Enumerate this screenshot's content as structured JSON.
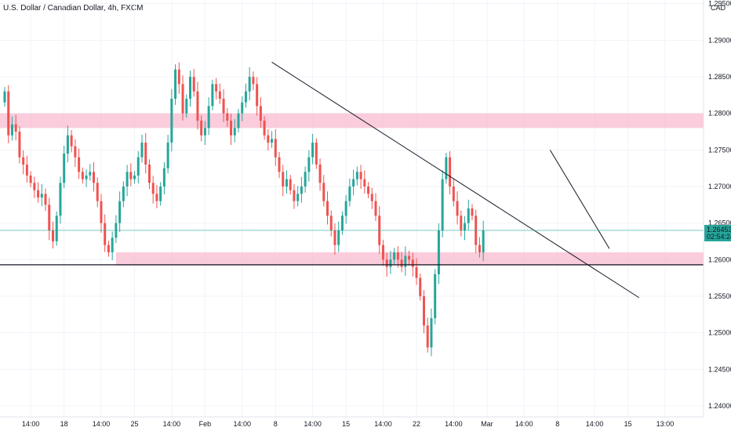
{
  "chart_data": {
    "type": "candlestick",
    "title": "U.S. Dollar / Canadian Dollar, 4h, FXCM",
    "currency": "CAD",
    "price_label": "1.26453",
    "countdown": "02:54:24",
    "ylim": [
      1.2385,
      1.2955
    ],
    "y_ticks": [
      "1.29500",
      "1.29000",
      "1.28500",
      "1.28000",
      "1.27500",
      "1.27000",
      "1.26500",
      "1.26000",
      "1.25500",
      "1.25000",
      "1.24500",
      "1.24000"
    ],
    "x_ticks": [
      {
        "label": "14:00",
        "bar": 7
      },
      {
        "label": "18",
        "bar": 16
      },
      {
        "label": "14:00",
        "bar": 26
      },
      {
        "label": "25",
        "bar": 35
      },
      {
        "label": "14:00",
        "bar": 45
      },
      {
        "label": "Feb",
        "bar": 54
      },
      {
        "label": "14:00",
        "bar": 64
      },
      {
        "label": "8",
        "bar": 73
      },
      {
        "label": "14:00",
        "bar": 83
      },
      {
        "label": "15",
        "bar": 92
      },
      {
        "label": "14:00",
        "bar": 102
      },
      {
        "label": "22",
        "bar": 111
      },
      {
        "label": "14:00",
        "bar": 121
      },
      {
        "label": "Mar",
        "bar": 130
      },
      {
        "label": "14:00",
        "bar": 140
      },
      {
        "label": "8",
        "bar": 149
      },
      {
        "label": "14:00",
        "bar": 159
      },
      {
        "label": "15",
        "bar": 168
      },
      {
        "label": "13:00",
        "bar": 178
      }
    ],
    "colors": {
      "up": "#26a69a",
      "down": "#ef5350",
      "zone": "#f8bbd0",
      "line": "#131722",
      "price_line": "#26a69a"
    },
    "closes": [
      1.283,
      1.277,
      1.2785,
      1.2775,
      1.274,
      1.273,
      1.2715,
      1.2705,
      1.2695,
      1.2685,
      1.269,
      1.2675,
      1.264,
      1.2625,
      1.266,
      1.2705,
      1.2745,
      1.277,
      1.2755,
      1.274,
      1.272,
      1.271,
      1.2715,
      1.272,
      1.2705,
      1.268,
      1.265,
      1.262,
      1.261,
      1.263,
      1.265,
      1.268,
      1.27,
      1.272,
      1.271,
      1.2715,
      1.274,
      1.276,
      1.273,
      1.2705,
      1.269,
      1.268,
      1.27,
      1.2725,
      1.276,
      1.282,
      1.286,
      1.284,
      1.28,
      1.282,
      1.285,
      1.283,
      1.279,
      1.277,
      1.278,
      1.281,
      1.284,
      1.283,
      1.282,
      1.28,
      1.279,
      1.277,
      1.278,
      1.28,
      1.2815,
      1.283,
      1.285,
      1.284,
      1.281,
      1.279,
      1.277,
      1.276,
      1.2765,
      1.274,
      1.272,
      1.27,
      1.271,
      1.2695,
      1.268,
      1.269,
      1.27,
      1.272,
      1.274,
      1.276,
      1.273,
      1.2705,
      1.268,
      1.266,
      1.264,
      1.262,
      1.264,
      1.266,
      1.268,
      1.27,
      1.271,
      1.272,
      1.271,
      1.27,
      1.269,
      1.268,
      1.266,
      1.262,
      1.26,
      1.259,
      1.26,
      1.261,
      1.26,
      1.259,
      1.2605,
      1.26,
      1.259,
      1.2575,
      1.255,
      1.251,
      1.248,
      1.252,
      1.258,
      1.264,
      1.271,
      1.274,
      1.27,
      1.268,
      1.266,
      1.264,
      1.265,
      1.267,
      1.266,
      1.262,
      1.261,
      1.264
    ],
    "zones": [
      {
        "top": 1.28,
        "bottom": 1.278,
        "bar_from": 0,
        "bar_to": 190
      },
      {
        "top": 1.261,
        "bottom": 1.2592,
        "bar_from": 30,
        "bar_to": 189
      }
    ],
    "lines": [
      {
        "from": {
          "bar": 72,
          "price": 1.287
        },
        "to": {
          "bar": 171,
          "price": 1.2548
        }
      },
      {
        "from": {
          "bar": 147,
          "price": 1.275
        },
        "to": {
          "bar": 163,
          "price": 1.2615
        }
      }
    ],
    "hline": 1.2593
  }
}
